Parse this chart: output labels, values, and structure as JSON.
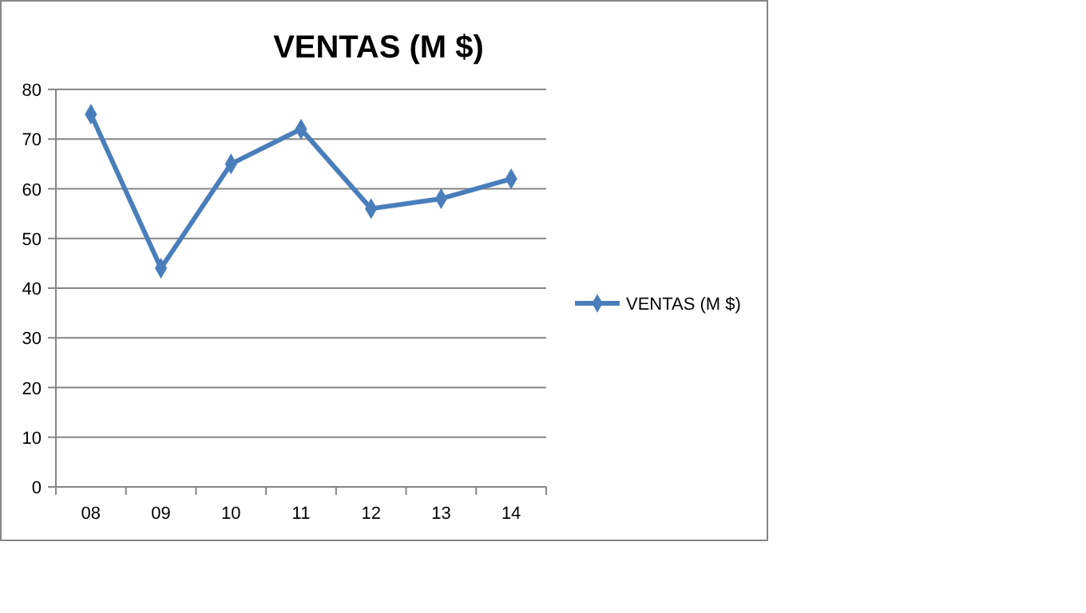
{
  "chart_data": {
    "type": "line",
    "title": "VENTAS (M $)",
    "categories": [
      "08",
      "09",
      "10",
      "11",
      "12",
      "13",
      "14"
    ],
    "series": [
      {
        "name": "VENTAS (M $)",
        "color": "#4a7ebb",
        "values": [
          75,
          44,
          65,
          72,
          56,
          58,
          62
        ]
      }
    ],
    "ylim": [
      0,
      80
    ],
    "yticks": [
      0,
      10,
      20,
      30,
      40,
      50,
      60,
      70,
      80
    ],
    "grid": "y",
    "legend": "right",
    "marker": "diamond",
    "line_style": "solid"
  }
}
